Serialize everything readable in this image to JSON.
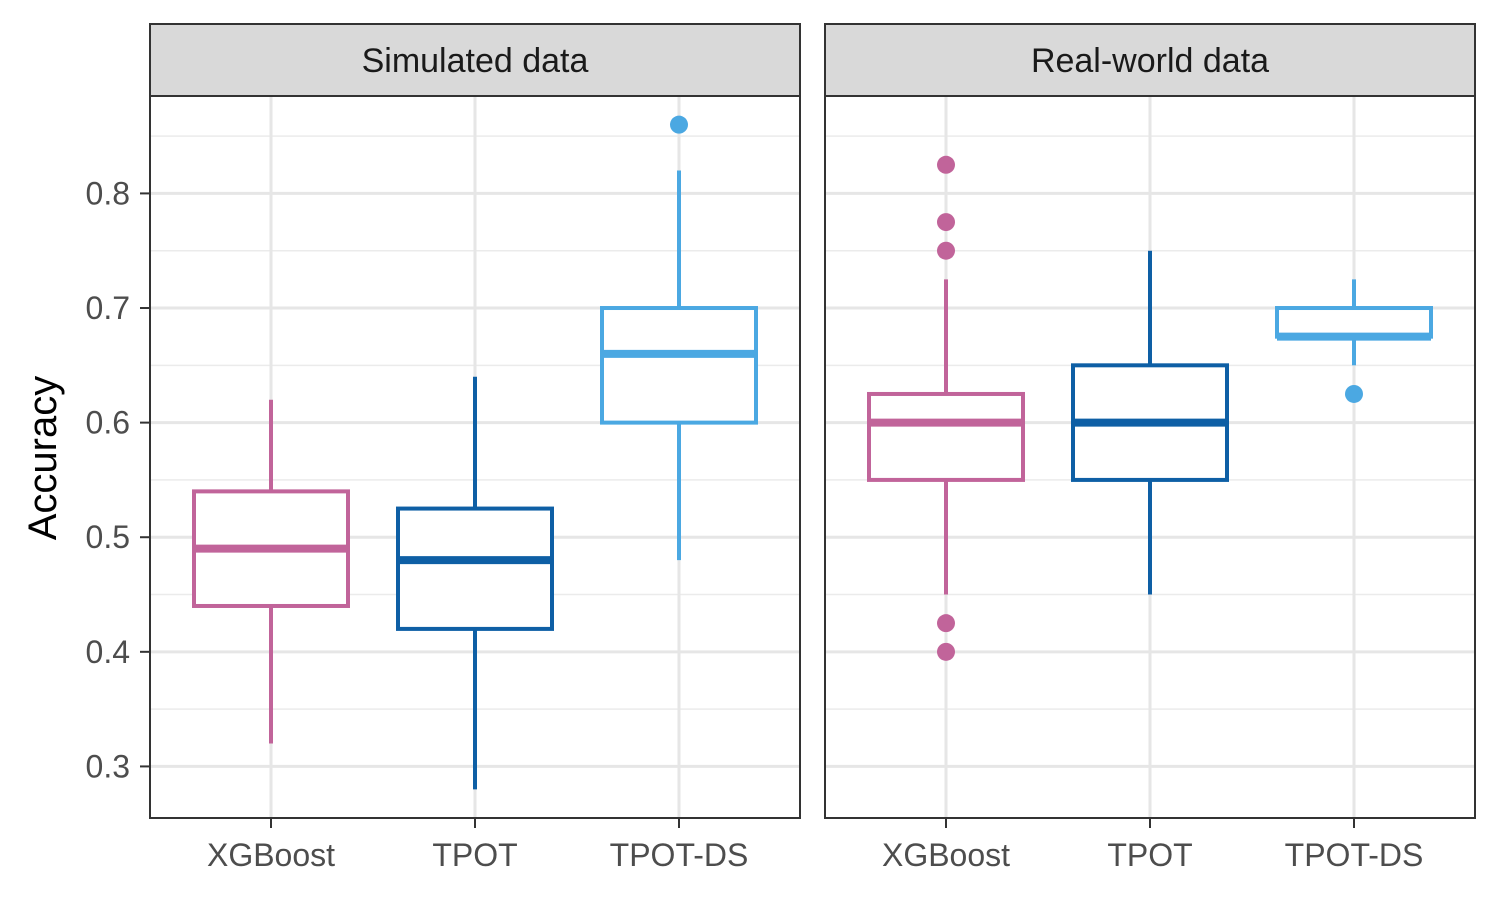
{
  "chart_data": {
    "type": "boxplot",
    "ylabel": "Accuracy",
    "xlabel": "",
    "ylim": [
      0.255,
      0.885
    ],
    "yticks": [
      0.3,
      0.4,
      0.5,
      0.6,
      0.7,
      0.8
    ],
    "ytick_labels": [
      "0.3",
      "0.4",
      "0.5",
      "0.6",
      "0.7",
      "0.8"
    ],
    "grid": true,
    "legend": "none",
    "categories": [
      "XGBoost",
      "TPOT",
      "TPOT-DS"
    ],
    "colors": {
      "XGBoost": "#C1649A",
      "TPOT": "#0E5FA5",
      "TPOT-DS": "#4BA8E2"
    },
    "panels": [
      {
        "title": "Simulated data",
        "boxes": [
          {
            "category": "XGBoost",
            "whisker_low": 0.32,
            "q1": 0.44,
            "median": 0.49,
            "q3": 0.54,
            "whisker_high": 0.62,
            "outliers": []
          },
          {
            "category": "TPOT",
            "whisker_low": 0.28,
            "q1": 0.42,
            "median": 0.48,
            "q3": 0.525,
            "whisker_high": 0.64,
            "outliers": []
          },
          {
            "category": "TPOT-DS",
            "whisker_low": 0.48,
            "q1": 0.6,
            "median": 0.66,
            "q3": 0.7,
            "whisker_high": 0.82,
            "outliers": [
              0.86
            ]
          }
        ]
      },
      {
        "title": "Real-world data",
        "boxes": [
          {
            "category": "XGBoost",
            "whisker_low": 0.45,
            "q1": 0.55,
            "median": 0.6,
            "q3": 0.625,
            "whisker_high": 0.725,
            "outliers": [
              0.825,
              0.775,
              0.75,
              0.425,
              0.4
            ]
          },
          {
            "category": "TPOT",
            "whisker_low": 0.45,
            "q1": 0.55,
            "median": 0.6,
            "q3": 0.65,
            "whisker_high": 0.75,
            "outliers": []
          },
          {
            "category": "TPOT-DS",
            "whisker_low": 0.65,
            "q1": 0.675,
            "median": 0.675,
            "q3": 0.7,
            "whisker_high": 0.725,
            "outliers": [
              0.625
            ]
          }
        ]
      }
    ]
  }
}
